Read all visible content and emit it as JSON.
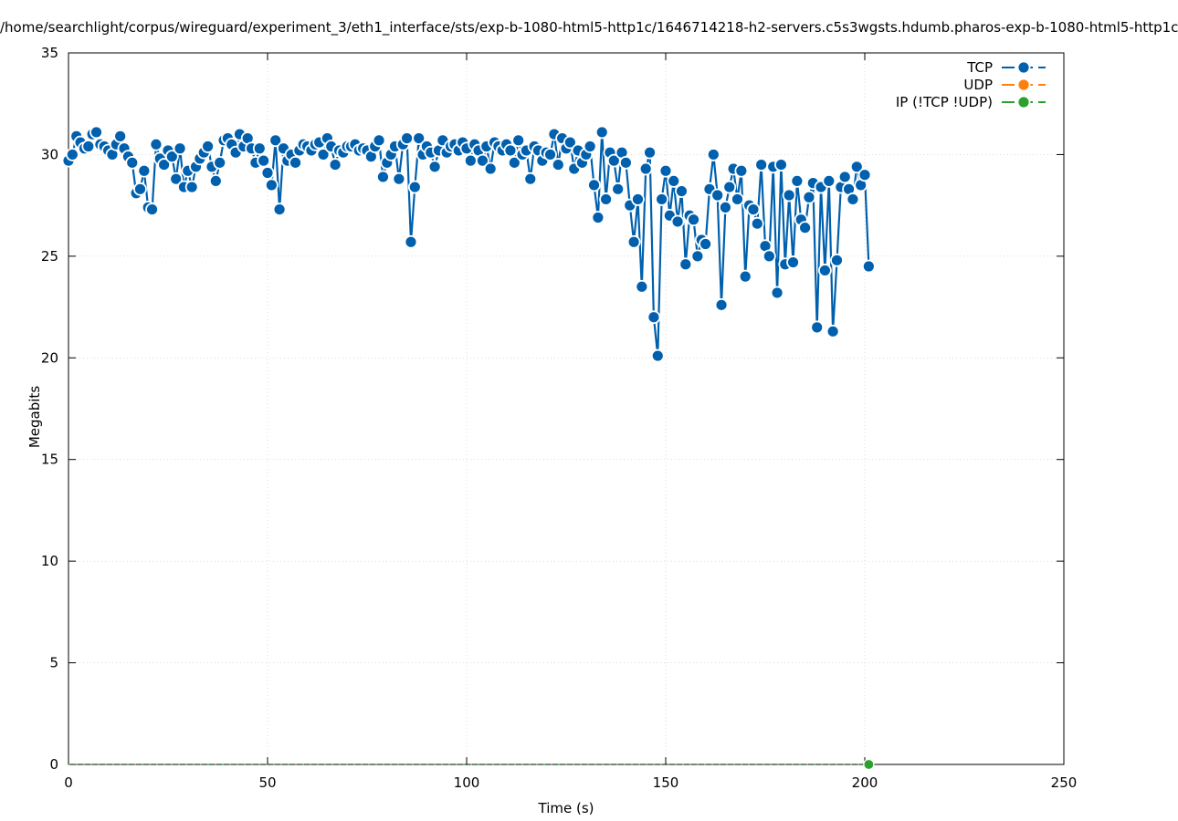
{
  "chart_data": {
    "type": "line",
    "title": "/home/searchlight/corpus/wireguard/experiment_3/eth1_interface/sts/exp-b-1080-html5-http1c/1646714218-h2-servers.c5s3wgsts.hdumb.pharos-exp-b-1080-html5-http1c",
    "xlabel": "Time (s)",
    "ylabel": "Megabits",
    "xlim": [
      0,
      250
    ],
    "ylim": [
      0,
      35
    ],
    "x_ticks": [
      "0",
      "50",
      "100",
      "150",
      "200",
      "250"
    ],
    "y_ticks": [
      "0",
      "5",
      "10",
      "15",
      "20",
      "25",
      "30",
      "35"
    ],
    "grid": true,
    "legend_position": "top-right",
    "series": [
      {
        "name": "TCP",
        "color": "#0060ad",
        "points": [
          [
            0,
            29.7
          ],
          [
            1,
            30.0
          ],
          [
            2,
            30.9
          ],
          [
            3,
            30.6
          ],
          [
            4,
            30.3
          ],
          [
            5,
            30.4
          ],
          [
            6,
            31.0
          ],
          [
            7,
            31.1
          ],
          [
            8,
            30.5
          ],
          [
            9,
            30.4
          ],
          [
            10,
            30.2
          ],
          [
            11,
            30.0
          ],
          [
            12,
            30.5
          ],
          [
            13,
            30.9
          ],
          [
            14,
            30.3
          ],
          [
            15,
            29.9
          ],
          [
            16,
            29.6
          ],
          [
            17,
            28.1
          ],
          [
            18,
            28.3
          ],
          [
            19,
            29.2
          ],
          [
            20,
            27.4
          ],
          [
            21,
            27.3
          ],
          [
            22,
            30.5
          ],
          [
            23,
            29.8
          ],
          [
            24,
            29.5
          ],
          [
            25,
            30.2
          ],
          [
            26,
            29.9
          ],
          [
            27,
            28.8
          ],
          [
            28,
            30.3
          ],
          [
            29,
            28.4
          ],
          [
            30,
            29.2
          ],
          [
            31,
            28.4
          ],
          [
            32,
            29.4
          ],
          [
            33,
            29.8
          ],
          [
            34,
            30.1
          ],
          [
            35,
            30.4
          ],
          [
            36,
            29.4
          ],
          [
            37,
            28.7
          ],
          [
            38,
            29.6
          ],
          [
            39,
            30.7
          ],
          [
            40,
            30.8
          ],
          [
            41,
            30.5
          ],
          [
            42,
            30.1
          ],
          [
            43,
            31.0
          ],
          [
            44,
            30.4
          ],
          [
            45,
            30.8
          ],
          [
            46,
            30.3
          ],
          [
            47,
            29.6
          ],
          [
            48,
            30.3
          ],
          [
            49,
            29.7
          ],
          [
            50,
            29.1
          ],
          [
            51,
            28.5
          ],
          [
            52,
            30.7
          ],
          [
            53,
            27.3
          ],
          [
            54,
            30.3
          ],
          [
            55,
            29.7
          ],
          [
            56,
            30.0
          ],
          [
            57,
            29.6
          ],
          [
            58,
            30.2
          ],
          [
            59,
            30.5
          ],
          [
            60,
            30.4
          ],
          [
            61,
            30.2
          ],
          [
            62,
            30.5
          ],
          [
            63,
            30.6
          ],
          [
            64,
            30.0
          ],
          [
            65,
            30.8
          ],
          [
            66,
            30.4
          ],
          [
            67,
            29.5
          ],
          [
            68,
            30.2
          ],
          [
            69,
            30.1
          ],
          [
            70,
            30.4
          ],
          [
            71,
            30.4
          ],
          [
            72,
            30.5
          ],
          [
            73,
            30.2
          ],
          [
            74,
            30.3
          ],
          [
            75,
            30.2
          ],
          [
            76,
            29.9
          ],
          [
            77,
            30.4
          ],
          [
            78,
            30.7
          ],
          [
            79,
            28.9
          ],
          [
            80,
            29.6
          ],
          [
            81,
            30.0
          ],
          [
            82,
            30.4
          ],
          [
            83,
            28.8
          ],
          [
            84,
            30.5
          ],
          [
            85,
            30.8
          ],
          [
            86,
            25.7
          ],
          [
            87,
            28.4
          ],
          [
            88,
            30.8
          ],
          [
            89,
            30.0
          ],
          [
            90,
            30.4
          ],
          [
            91,
            30.1
          ],
          [
            92,
            29.4
          ],
          [
            93,
            30.2
          ],
          [
            94,
            30.7
          ],
          [
            95,
            30.1
          ],
          [
            96,
            30.4
          ],
          [
            97,
            30.5
          ],
          [
            98,
            30.2
          ],
          [
            99,
            30.6
          ],
          [
            100,
            30.3
          ],
          [
            101,
            29.7
          ],
          [
            102,
            30.5
          ],
          [
            103,
            30.2
          ],
          [
            104,
            29.7
          ],
          [
            105,
            30.4
          ],
          [
            106,
            29.3
          ],
          [
            107,
            30.6
          ],
          [
            108,
            30.4
          ],
          [
            109,
            30.2
          ],
          [
            110,
            30.5
          ],
          [
            111,
            30.2
          ],
          [
            112,
            29.6
          ],
          [
            113,
            30.7
          ],
          [
            114,
            30.0
          ],
          [
            115,
            30.2
          ],
          [
            116,
            28.8
          ],
          [
            117,
            30.4
          ],
          [
            118,
            30.2
          ],
          [
            119,
            29.7
          ],
          [
            120,
            30.1
          ],
          [
            121,
            30.0
          ],
          [
            122,
            31.0
          ],
          [
            123,
            29.5
          ],
          [
            124,
            30.8
          ],
          [
            125,
            30.3
          ],
          [
            126,
            30.6
          ],
          [
            127,
            29.3
          ],
          [
            128,
            30.2
          ],
          [
            129,
            29.6
          ],
          [
            130,
            30.0
          ],
          [
            131,
            30.4
          ],
          [
            132,
            28.5
          ],
          [
            133,
            26.9
          ],
          [
            134,
            31.1
          ],
          [
            135,
            27.8
          ],
          [
            136,
            30.1
          ],
          [
            137,
            29.7
          ],
          [
            138,
            28.3
          ],
          [
            139,
            30.1
          ],
          [
            140,
            29.6
          ],
          [
            141,
            27.5
          ],
          [
            142,
            25.7
          ],
          [
            143,
            27.8
          ],
          [
            144,
            23.5
          ],
          [
            145,
            29.3
          ],
          [
            146,
            30.1
          ],
          [
            147,
            22.0
          ],
          [
            148,
            20.1
          ],
          [
            149,
            27.8
          ],
          [
            150,
            29.2
          ],
          [
            151,
            27.0
          ],
          [
            152,
            28.7
          ],
          [
            153,
            26.7
          ],
          [
            154,
            28.2
          ],
          [
            155,
            24.6
          ],
          [
            156,
            27.0
          ],
          [
            157,
            26.8
          ],
          [
            158,
            25.0
          ],
          [
            159,
            25.8
          ],
          [
            160,
            25.6
          ],
          [
            161,
            28.3
          ],
          [
            162,
            30.0
          ],
          [
            163,
            28.0
          ],
          [
            164,
            22.6
          ],
          [
            165,
            27.4
          ],
          [
            166,
            28.4
          ],
          [
            167,
            29.3
          ],
          [
            168,
            27.8
          ],
          [
            169,
            29.2
          ],
          [
            170,
            24.0
          ],
          [
            171,
            27.5
          ],
          [
            172,
            27.3
          ],
          [
            173,
            26.6
          ],
          [
            174,
            29.5
          ],
          [
            175,
            25.5
          ],
          [
            176,
            25.0
          ],
          [
            177,
            29.4
          ],
          [
            178,
            23.2
          ],
          [
            179,
            29.5
          ],
          [
            180,
            24.6
          ],
          [
            181,
            28.0
          ],
          [
            182,
            24.7
          ],
          [
            183,
            28.7
          ],
          [
            184,
            26.8
          ],
          [
            185,
            26.4
          ],
          [
            186,
            27.9
          ],
          [
            187,
            28.6
          ],
          [
            188,
            21.5
          ],
          [
            189,
            28.4
          ],
          [
            190,
            24.3
          ],
          [
            191,
            28.7
          ],
          [
            192,
            21.3
          ],
          [
            193,
            24.8
          ],
          [
            194,
            28.4
          ],
          [
            195,
            28.9
          ],
          [
            196,
            28.3
          ],
          [
            197,
            27.8
          ],
          [
            198,
            29.4
          ],
          [
            199,
            28.5
          ],
          [
            200,
            29.0
          ],
          [
            201,
            24.5
          ]
        ]
      },
      {
        "name": "UDP",
        "color": "#ff7f0e",
        "points": []
      },
      {
        "name": "IP (!TCP  !UDP)",
        "color": "#2ca02c",
        "points": [
          [
            0,
            0
          ],
          [
            2,
            0
          ],
          [
            4,
            0
          ],
          [
            6,
            0
          ],
          [
            8,
            0
          ],
          [
            10,
            0
          ],
          [
            12,
            0
          ],
          [
            14,
            0
          ],
          [
            16,
            0
          ],
          [
            18,
            0
          ],
          [
            20,
            0
          ],
          [
            22,
            0
          ],
          [
            24,
            0
          ],
          [
            26,
            0
          ],
          [
            28,
            0
          ],
          [
            30,
            0
          ],
          [
            32,
            0
          ],
          [
            34,
            0
          ],
          [
            36,
            0
          ],
          [
            38,
            0
          ],
          [
            40,
            0
          ],
          [
            42,
            0
          ],
          [
            44,
            0
          ],
          [
            46,
            0
          ],
          [
            48,
            0
          ],
          [
            50,
            0
          ],
          [
            52,
            0
          ],
          [
            54,
            0
          ],
          [
            56,
            0
          ],
          [
            58,
            0
          ],
          [
            60,
            0
          ],
          [
            62,
            0
          ],
          [
            64,
            0
          ],
          [
            66,
            0
          ],
          [
            68,
            0
          ],
          [
            70,
            0
          ],
          [
            72,
            0
          ],
          [
            74,
            0
          ],
          [
            76,
            0
          ],
          [
            78,
            0
          ],
          [
            80,
            0
          ],
          [
            82,
            0
          ],
          [
            84,
            0
          ],
          [
            86,
            0
          ],
          [
            88,
            0
          ],
          [
            90,
            0
          ],
          [
            92,
            0
          ],
          [
            94,
            0
          ],
          [
            96,
            0
          ],
          [
            98,
            0
          ],
          [
            100,
            0
          ],
          [
            102,
            0
          ],
          [
            104,
            0
          ],
          [
            106,
            0
          ],
          [
            108,
            0
          ],
          [
            110,
            0
          ],
          [
            112,
            0
          ],
          [
            114,
            0
          ],
          [
            116,
            0
          ],
          [
            118,
            0
          ],
          [
            120,
            0
          ],
          [
            122,
            0
          ],
          [
            124,
            0
          ],
          [
            126,
            0
          ],
          [
            128,
            0
          ],
          [
            130,
            0
          ],
          [
            132,
            0
          ],
          [
            134,
            0
          ],
          [
            136,
            0
          ],
          [
            138,
            0
          ],
          [
            140,
            0
          ],
          [
            142,
            0
          ],
          [
            144,
            0
          ],
          [
            146,
            0
          ],
          [
            148,
            0
          ],
          [
            150,
            0
          ],
          [
            152,
            0
          ],
          [
            154,
            0
          ],
          [
            156,
            0
          ],
          [
            158,
            0
          ],
          [
            160,
            0
          ],
          [
            162,
            0
          ],
          [
            164,
            0
          ],
          [
            166,
            0
          ],
          [
            168,
            0
          ],
          [
            170,
            0
          ],
          [
            172,
            0
          ],
          [
            174,
            0
          ],
          [
            176,
            0
          ],
          [
            178,
            0
          ],
          [
            180,
            0
          ],
          [
            182,
            0
          ],
          [
            184,
            0
          ],
          [
            186,
            0
          ],
          [
            188,
            0
          ],
          [
            190,
            0
          ],
          [
            192,
            0
          ],
          [
            194,
            0
          ],
          [
            196,
            0
          ],
          [
            198,
            0
          ],
          [
            200,
            0
          ],
          [
            201,
            0
          ]
        ]
      }
    ]
  }
}
